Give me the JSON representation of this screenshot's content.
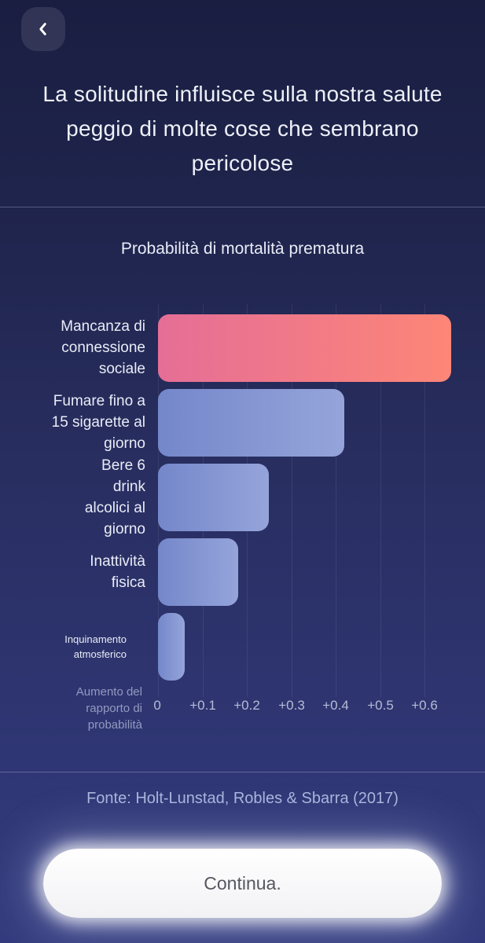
{
  "header": {
    "title": "La solitudine influisce sulla nostra salute peggio di molte cose che sembrano pericolose"
  },
  "chart_data": {
    "type": "bar",
    "orientation": "horizontal",
    "title": "Probabilità di mortalità prematura",
    "categories": [
      "Mancanza di\nconnessione\nsociale",
      "Fumare fino a\n15 sigarette al\ngiorno",
      "Bere 6\ndrink\nalcolici al\ngiorno",
      "Inattività\nfisica",
      "Inquinamento\natmosferico"
    ],
    "values": [
      0.66,
      0.42,
      0.25,
      0.18,
      0.06
    ],
    "highlight_index": 0,
    "bar_gradients": {
      "highlight": [
        "#e56e97",
        "#fd8677"
      ],
      "default": [
        "#7487ca",
        "#95a4da"
      ]
    },
    "xlabel": "Aumento del\nrapporto di\nprobabilità",
    "xticks": [
      "0",
      "+0.1",
      "+0.2",
      "+0.3",
      "+0.4",
      "+0.5",
      "+0.6"
    ],
    "xtick_values": [
      0,
      0.1,
      0.2,
      0.3,
      0.4,
      0.5,
      0.6
    ],
    "xlim": [
      0,
      0.7
    ],
    "grid": true,
    "legend": false
  },
  "footer": {
    "source": "Fonte: Holt-Lunstad, Robles & Sbarra (2017)",
    "continue_label": "Continua."
  },
  "colors": {
    "background_top": "#1a1e41",
    "background_bottom": "#333b7e",
    "highlight_bar_start": "#e56e97",
    "highlight_bar_end": "#fd8677",
    "default_bar_start": "#7487ca",
    "default_bar_end": "#95a4da",
    "title_text": "#eef0f8",
    "muted_text": "#929ac0",
    "button_text": "#56575f"
  }
}
